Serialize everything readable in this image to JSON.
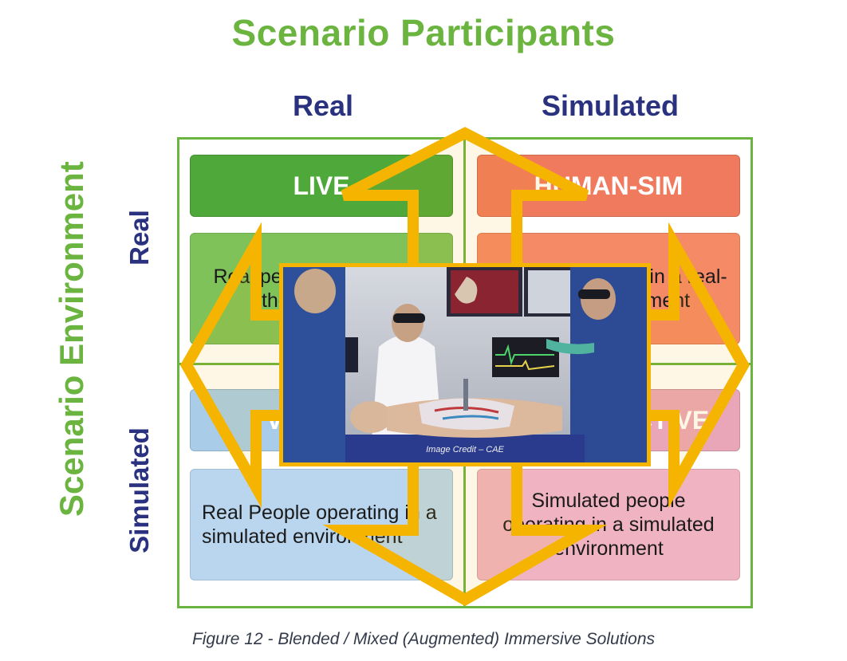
{
  "title": "Scenario Participants",
  "columns": {
    "left": "Real",
    "right": "Simulated"
  },
  "axis_left": "Scenario Environment",
  "rows": {
    "top": "Real",
    "bottom": "Simulated"
  },
  "quadrants": {
    "top_left": {
      "head": "LIVE",
      "desc": "Real people operating in the real world",
      "head_color": "#4fa83a",
      "desc_color": "#7fc25a"
    },
    "top_right": {
      "head": "HUMAN-SIM",
      "desc": "Simulated people in a real-world environment",
      "head_color": "#f07a5e",
      "desc_color": "#f48a66"
    },
    "bottom_left": {
      "head": "VIRTUAL",
      "desc": "Real People operating in a simulated environment",
      "head_color": "#a9cde9",
      "desc_color": "#b9d6ee"
    },
    "bottom_right": {
      "head": "CONSTRUCTIVE",
      "desc": "Simulated people operating in a simulated environment",
      "head_color": "#e9a6b8",
      "desc_color": "#f0b3c2"
    }
  },
  "photo": {
    "credit": "Image Credit – CAE"
  },
  "caption": "Figure 12 - Blended / Mixed (Augmented) Immersive Solutions",
  "colors": {
    "green": "#6ab43f",
    "navy": "#2a3280",
    "arrow": "#f5b400"
  }
}
